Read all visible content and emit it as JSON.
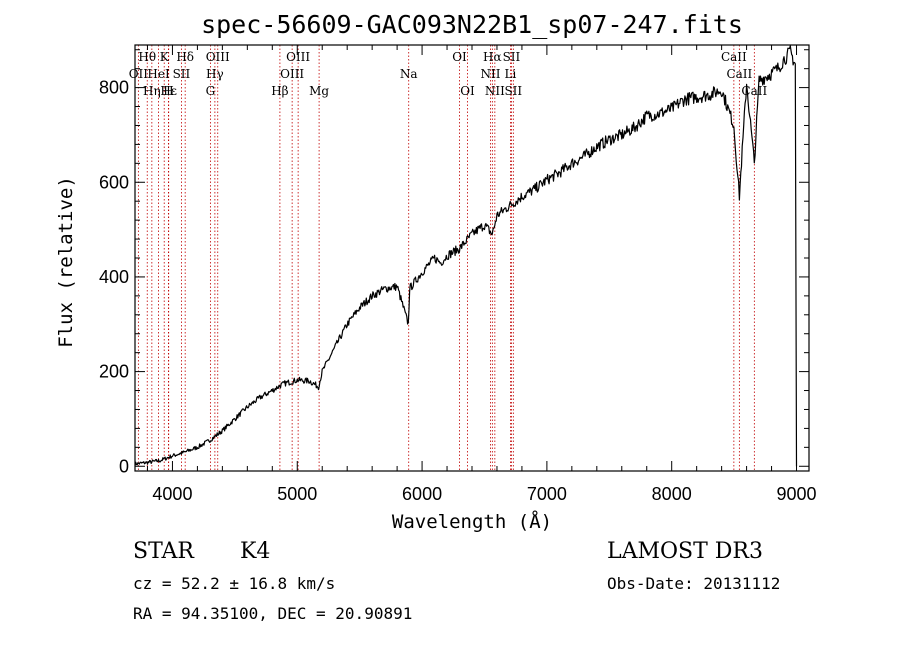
{
  "chart_data": {
    "type": "line",
    "title": "spec-56609-GAC093N22B1_sp07-247.fits",
    "xlabel": "Wavelength (Å)",
    "ylabel": "Flux (relative)",
    "xlim": [
      3700,
      9100
    ],
    "ylim": [
      -10,
      890
    ],
    "xticks": [
      4000,
      5000,
      6000,
      7000,
      8000,
      9000
    ],
    "yticks": [
      0,
      200,
      400,
      600,
      800
    ],
    "series": [
      {
        "name": "spectrum",
        "x": [
          3700,
          3800,
          3900,
          4000,
          4100,
          4200,
          4300,
          4400,
          4500,
          4600,
          4700,
          4800,
          4860,
          4900,
          5000,
          5100,
          5170,
          5200,
          5300,
          5400,
          5500,
          5600,
          5700,
          5800,
          5890,
          5900,
          6000,
          6100,
          6150,
          6200,
          6300,
          6400,
          6500,
          6563,
          6600,
          6700,
          6800,
          6900,
          7000,
          7100,
          7200,
          7300,
          7400,
          7500,
          7600,
          7700,
          7800,
          7900,
          8000,
          8100,
          8200,
          8300,
          8400,
          8498,
          8542,
          8600,
          8662,
          8700,
          8800,
          8850,
          8900,
          8950,
          8990,
          9000
        ],
        "y": [
          5,
          8,
          12,
          22,
          30,
          40,
          55,
          75,
          100,
          125,
          145,
          160,
          170,
          175,
          182,
          180,
          168,
          200,
          250,
          300,
          335,
          360,
          375,
          380,
          300,
          375,
          410,
          440,
          430,
          445,
          460,
          490,
          510,
          490,
          530,
          550,
          570,
          585,
          605,
          620,
          640,
          655,
          675,
          690,
          700,
          715,
          740,
          745,
          755,
          775,
          780,
          785,
          795,
          720,
          570,
          810,
          640,
          815,
          830,
          840,
          860,
          875,
          850,
          0
        ]
      }
    ],
    "lines": [
      {
        "label": "Hθ",
        "x": 3798,
        "row": 0
      },
      {
        "label": "OII",
        "x": 3727,
        "row": 1
      },
      {
        "label": "Hη",
        "x": 3835,
        "row": 2
      },
      {
        "label": "K",
        "x": 3934,
        "row": 0
      },
      {
        "label": "HeI",
        "x": 3889,
        "row": 1
      },
      {
        "label": "Hε",
        "x": 3970,
        "row": 2
      },
      {
        "label": "Hδ",
        "x": 4102,
        "row": 0
      },
      {
        "label": "SII",
        "x": 4072,
        "row": 1
      },
      {
        "label": "H",
        "x": 3968,
        "row": 2
      },
      {
        "label": "OIII",
        "x": 4363,
        "row": 0
      },
      {
        "label": "Hγ",
        "x": 4340,
        "row": 1
      },
      {
        "label": "G",
        "x": 4304,
        "row": 2
      },
      {
        "label": "OIII",
        "x": 5007,
        "row": 0
      },
      {
        "label": "OIII",
        "x": 4959,
        "row": 1
      },
      {
        "label": "Hβ",
        "x": 4861,
        "row": 2
      },
      {
        "label": "Mg",
        "x": 5175,
        "row": 2
      },
      {
        "label": "Na",
        "x": 5893,
        "row": 1
      },
      {
        "label": "OI",
        "x": 6300,
        "row": 0
      },
      {
        "label": "OI",
        "x": 6364,
        "row": 2
      },
      {
        "label": "Hα",
        "x": 6563,
        "row": 0
      },
      {
        "label": "NII",
        "x": 6548,
        "row": 1
      },
      {
        "label": "NII",
        "x": 6583,
        "row": 2
      },
      {
        "label": "SII",
        "x": 6716,
        "row": 0
      },
      {
        "label": "Li",
        "x": 6708,
        "row": 1
      },
      {
        "label": "SII",
        "x": 6731,
        "row": 2
      },
      {
        "label": "CaII",
        "x": 8498,
        "row": 0
      },
      {
        "label": "CaII",
        "x": 8542,
        "row": 1
      },
      {
        "label": "CaII",
        "x": 8662,
        "row": 2
      }
    ]
  },
  "info": {
    "class_label": "STAR",
    "subclass": "K4",
    "survey": "LAMOST DR3",
    "cz": "cz = 52.2 ± 16.8 km/s",
    "obs_date": "Obs-Date: 20131112",
    "coords": "RA =  94.35100, DEC =  20.90891"
  },
  "colors": {
    "line_marker": "#c00000",
    "spectrum": "#000000",
    "axes": "#000000"
  }
}
